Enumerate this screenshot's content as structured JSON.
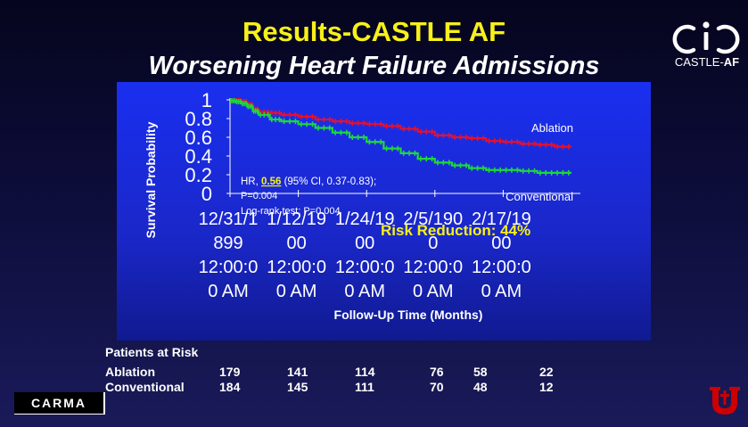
{
  "slide": {
    "title": "Results-CASTLE AF",
    "subtitle": "Worsening Heart Failure Admissions",
    "castle_logo_text_plain": "CASTLE-",
    "castle_logo_text_bold": "AF",
    "carma_logo_text": "CARMA",
    "brand_colors": {
      "title_yellow": "#f7f01a",
      "utah_red": "#cc0000"
    }
  },
  "chart_data": {
    "type": "line",
    "ylabel": "Survival Probability",
    "xlabel": "Follow-Up Time (Months)",
    "ylim": [
      0,
      1
    ],
    "xlim": [
      0,
      60
    ],
    "y_ticks": [
      "1",
      "0.8",
      "0.6",
      "0.4",
      "0.2",
      "0"
    ],
    "y_tick_values": [
      1,
      0.8,
      0.6,
      0.4,
      0.2,
      0
    ],
    "x_tick_values": [
      0,
      12,
      24,
      36,
      48
    ],
    "x_tick_labels": [
      [
        "12/31/1",
        "899",
        "12:00:0",
        "0 AM"
      ],
      [
        "1/12/19",
        "00",
        "12:00:0",
        "0 AM"
      ],
      [
        "1/24/19",
        "00",
        "12:00:0",
        "0 AM"
      ],
      [
        "2/5/190",
        "0",
        "12:00:0",
        "0 AM"
      ],
      [
        "2/17/19",
        "00",
        "12:00:0",
        "0 AM"
      ]
    ],
    "annotations": {
      "hr_prefix": "HR, ",
      "hr_value": "0.56",
      "hr_suffix": " (95% CI, 0.37-0.83);",
      "p_value": "P=0.004",
      "log_rank": "Log-rank test: P=0.004",
      "risk_reduction": "Risk Reduction: 44%"
    },
    "series": [
      {
        "name": "Ablation",
        "color": "#e8102a",
        "x": [
          0,
          1,
          2,
          3,
          4,
          5,
          7,
          9,
          12,
          15,
          18,
          21,
          24,
          27,
          30,
          33,
          36,
          39,
          42,
          45,
          48,
          51,
          54,
          57,
          60
        ],
        "y": [
          0.99,
          0.99,
          0.98,
          0.95,
          0.9,
          0.87,
          0.86,
          0.84,
          0.82,
          0.79,
          0.77,
          0.75,
          0.74,
          0.72,
          0.69,
          0.66,
          0.62,
          0.6,
          0.59,
          0.56,
          0.55,
          0.53,
          0.52,
          0.5,
          0.5
        ]
      },
      {
        "name": "Conventional",
        "color": "#1ed83a",
        "x": [
          0,
          1,
          2,
          3,
          4,
          5,
          7,
          9,
          12,
          15,
          18,
          21,
          24,
          27,
          30,
          33,
          36,
          39,
          42,
          45,
          48,
          51,
          54,
          57,
          60
        ],
        "y": [
          0.99,
          0.98,
          0.96,
          0.93,
          0.88,
          0.84,
          0.79,
          0.77,
          0.74,
          0.7,
          0.65,
          0.6,
          0.55,
          0.48,
          0.43,
          0.37,
          0.33,
          0.3,
          0.27,
          0.25,
          0.25,
          0.24,
          0.22,
          0.22,
          0.22
        ]
      }
    ]
  },
  "patients_at_risk": {
    "title": "Patients at Risk",
    "rows": [
      {
        "label": "Ablation",
        "values": [
          "179",
          "141",
          "114",
          "76",
          "58",
          "22"
        ]
      },
      {
        "label": "Conventional",
        "values": [
          "184",
          "145",
          "111",
          "70",
          "48",
          "12"
        ]
      }
    ]
  }
}
